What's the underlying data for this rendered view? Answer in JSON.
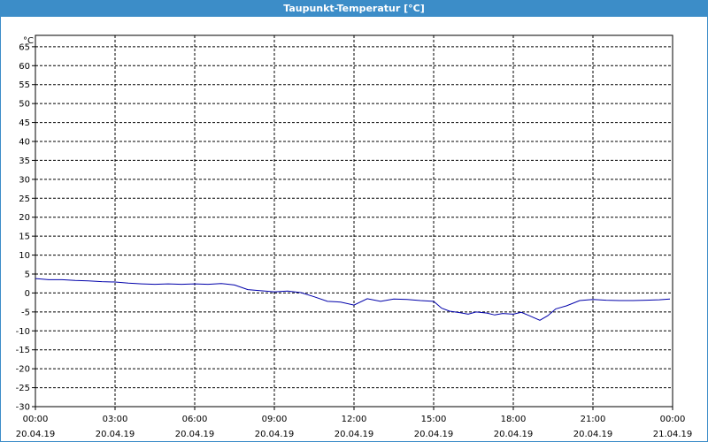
{
  "window": {
    "title": "Taupunkt-Temperatur [°C]"
  },
  "colors": {
    "titlebar": "#3c8dc8",
    "line": "#0000aa",
    "grid": "#000000"
  },
  "chart_data": {
    "type": "line",
    "title": "Taupunkt-Temperatur [°C]",
    "ylabel": "°C",
    "xlabel": "",
    "ylim": [
      -30,
      68
    ],
    "xlim": [
      0,
      24
    ],
    "grid": true,
    "y_ticks": [
      65,
      60,
      55,
      50,
      45,
      40,
      35,
      30,
      25,
      20,
      15,
      10,
      5,
      0,
      -5,
      -10,
      -15,
      -20,
      -25,
      -30
    ],
    "x_ticks": [
      {
        "time": "00:00",
        "date": "20.04.19"
      },
      {
        "time": "03:00",
        "date": "20.04.19"
      },
      {
        "time": "06:00",
        "date": "20.04.19"
      },
      {
        "time": "09:00",
        "date": "20.04.19"
      },
      {
        "time": "12:00",
        "date": "20.04.19"
      },
      {
        "time": "15:00",
        "date": "20.04.19"
      },
      {
        "time": "18:00",
        "date": "20.04.19"
      },
      {
        "time": "21:00",
        "date": "20.04.19"
      },
      {
        "time": "00:00",
        "date": "21.04.19"
      }
    ],
    "series": [
      {
        "x": [
          0,
          0.5,
          1,
          1.5,
          2,
          2.5,
          3,
          3.5,
          4,
          4.5,
          5,
          5.5,
          6,
          6.5,
          7,
          7.5,
          8,
          8.5,
          9,
          9.5,
          10,
          10.5,
          11,
          11.5,
          12,
          12.5,
          13,
          13.5,
          14,
          14.5,
          15,
          15.3,
          15.6,
          16,
          16.3,
          16.6,
          17,
          17.3,
          17.6,
          18,
          18.3,
          18.6,
          19,
          19.3,
          19.6,
          20,
          20.5,
          21,
          21.5,
          22,
          22.5,
          23,
          23.5,
          23.9
        ],
        "y": [
          3.8,
          3.5,
          3.5,
          3.3,
          3.2,
          3.0,
          2.9,
          2.6,
          2.4,
          2.3,
          2.4,
          2.3,
          2.4,
          2.3,
          2.5,
          2.1,
          0.9,
          0.6,
          0.3,
          0.5,
          0.1,
          -1.0,
          -2.2,
          -2.4,
          -3.2,
          -1.5,
          -2.2,
          -1.6,
          -1.7,
          -2.0,
          -2.2,
          -4.0,
          -4.8,
          -5.2,
          -5.6,
          -5.0,
          -5.3,
          -5.8,
          -5.4,
          -5.6,
          -5.1,
          -6.0,
          -7.2,
          -6.0,
          -4.2,
          -3.4,
          -2.0,
          -1.7,
          -1.9,
          -2.0,
          -2.0,
          -1.9,
          -1.8,
          -1.6
        ]
      }
    ]
  }
}
